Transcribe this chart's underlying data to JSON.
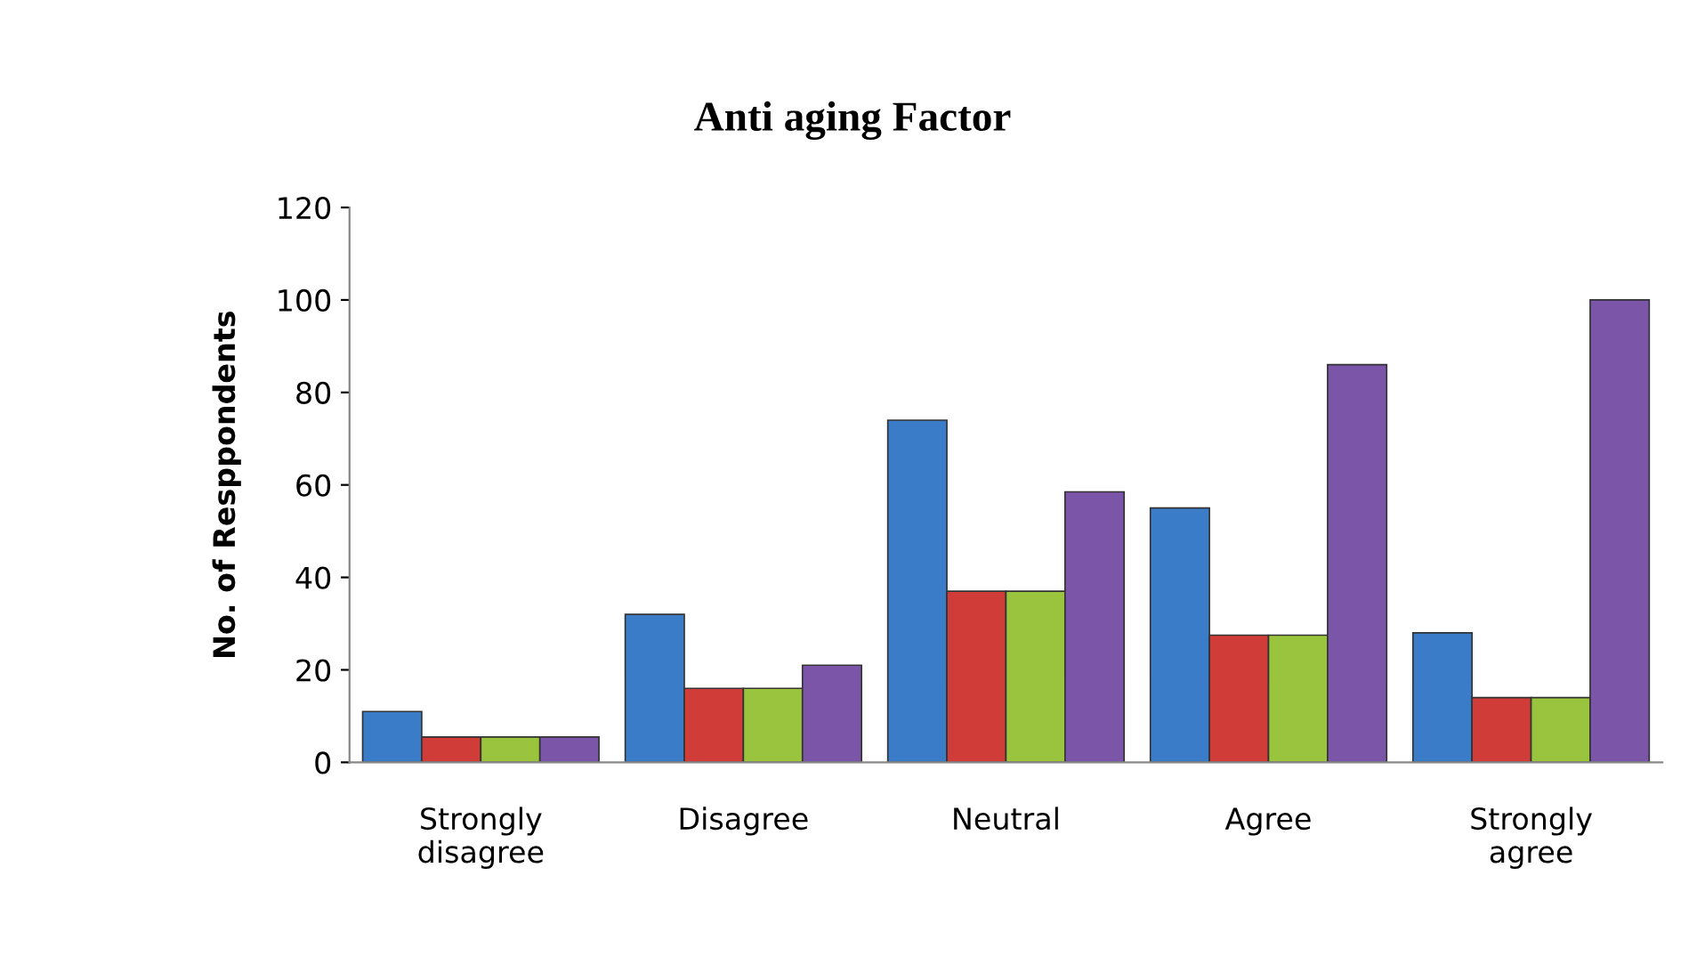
{
  "chart_data": {
    "type": "bar",
    "title": "Anti aging Factor",
    "ylabel": "No. of Resppondents",
    "categories": [
      "Strongly\ndisagree",
      "Disagree",
      "Neutral",
      "Agree",
      "Strongly\nagree"
    ],
    "series": [
      {
        "color": "#3a7cc8",
        "values": [
          11,
          32,
          74,
          55,
          28
        ]
      },
      {
        "color": "#d03c38",
        "values": [
          5.5,
          16,
          37,
          27.5,
          14
        ]
      },
      {
        "color": "#9bc43e",
        "values": [
          5.5,
          16,
          37,
          27.5,
          14
        ]
      },
      {
        "color": "#7b55a8",
        "values": [
          5.5,
          21,
          58.5,
          86,
          100
        ]
      }
    ],
    "ylim": [
      0,
      120
    ],
    "yticks": [
      0,
      20,
      40,
      60,
      80,
      100,
      120
    ],
    "grid": false
  }
}
